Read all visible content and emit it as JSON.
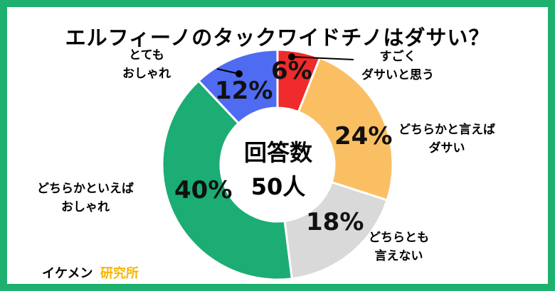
{
  "title": "エルフィーノのタックワイドチノはダサい？",
  "center": {
    "line1": "回答数",
    "line2": "50人"
  },
  "footer": {
    "brand": "イケメン",
    "suffix": "研究所"
  },
  "colors": {
    "frame": "#1db06e"
  },
  "chart_data": {
    "type": "pie",
    "title": "エルフィーノのタックワイドチノはダサい？",
    "total_label": "回答数 50人",
    "slices": [
      {
        "label": "すごくダサいと思う",
        "value": 6,
        "display": "6%",
        "color": "#ef2b2b"
      },
      {
        "label": "どちらかと言えばダサい",
        "value": 24,
        "display": "24%",
        "color": "#fbbf63"
      },
      {
        "label": "どちらとも言えない",
        "value": 18,
        "display": "18%",
        "color": "#d9d9d9"
      },
      {
        "label": "どちらかといえばおしゃれ",
        "value": 40,
        "display": "40%",
        "color": "#1bad73"
      },
      {
        "label": "とてもおしゃれ",
        "value": 12,
        "display": "12%",
        "color": "#4f6bf2"
      }
    ]
  },
  "labels": [
    {
      "line1": "すごく",
      "line2": "ダサいと思う"
    },
    {
      "line1": "どちらかと言えば",
      "line2": "ダサい"
    },
    {
      "line1": "どちらとも",
      "line2": "言えない"
    },
    {
      "line1": "どちらかといえば",
      "line2": "おしゃれ"
    },
    {
      "line1": "とても",
      "line2": "おしゃれ"
    }
  ]
}
